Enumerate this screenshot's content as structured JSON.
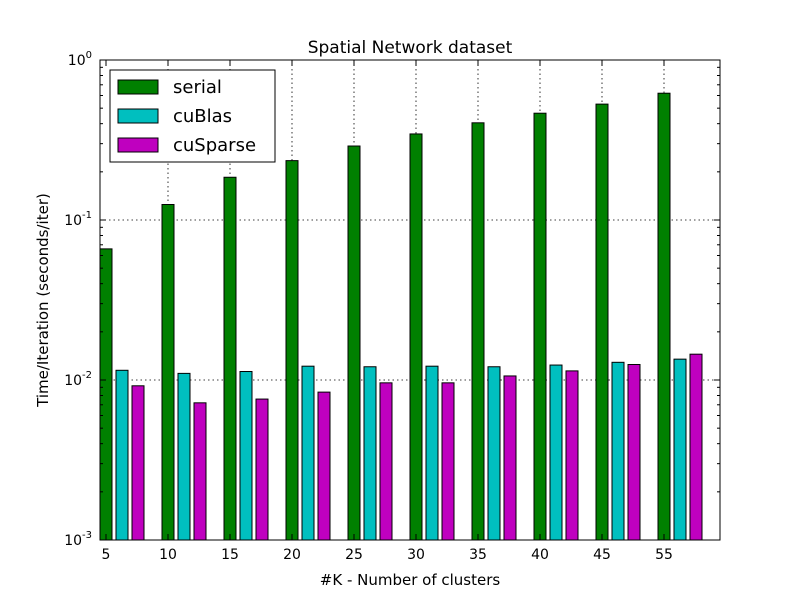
{
  "chart_data": {
    "type": "bar",
    "title": "Spatial Network dataset",
    "xlabel": "#K - Number of clusters",
    "ylabel": "Time/Iteration (seconds/iter)",
    "yscale": "log",
    "ylim": [
      0.001,
      1
    ],
    "y_ticks": [
      {
        "base": "10",
        "exp": "-3",
        "value": 0.001
      },
      {
        "base": "10",
        "exp": "-2",
        "value": 0.01
      },
      {
        "base": "10",
        "exp": "-1",
        "value": 0.1
      },
      {
        "base": "10",
        "exp": "0",
        "value": 1
      }
    ],
    "categories": [
      "5",
      "10",
      "15",
      "20",
      "25",
      "30",
      "35",
      "40",
      "45",
      "55"
    ],
    "series": [
      {
        "name": "serial",
        "color": "#008000",
        "values": [
          0.066,
          0.125,
          0.185,
          0.235,
          0.29,
          0.345,
          0.405,
          0.465,
          0.53,
          0.62
        ]
      },
      {
        "name": "cuBlas",
        "color": "#00bfbf",
        "values": [
          0.0115,
          0.011,
          0.0113,
          0.0122,
          0.0121,
          0.0122,
          0.0121,
          0.0124,
          0.0129,
          0.0135
        ]
      },
      {
        "name": "cuSparse",
        "color": "#bf00bf",
        "values": [
          0.0092,
          0.0072,
          0.0076,
          0.0084,
          0.0096,
          0.0096,
          0.0106,
          0.0114,
          0.0125,
          0.0145
        ]
      }
    ],
    "grid": true,
    "legend_position": "top-left"
  }
}
